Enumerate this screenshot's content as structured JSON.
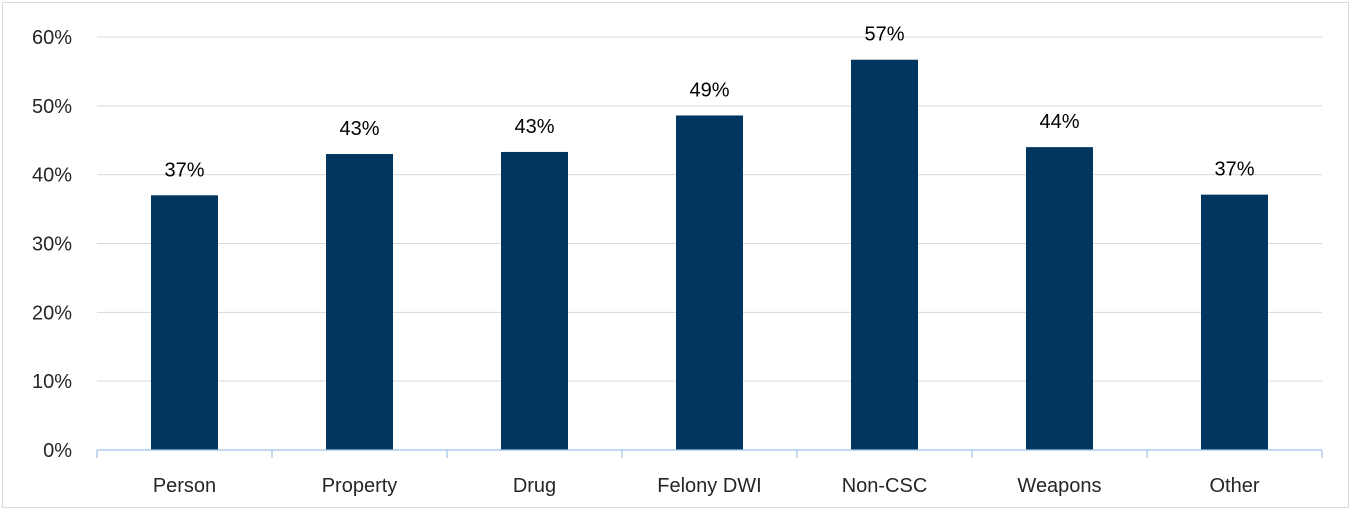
{
  "chart_data": {
    "type": "bar",
    "title": "",
    "xlabel": "",
    "ylabel": "",
    "categories": [
      "Person",
      "Property",
      "Drug",
      "Felony DWI",
      "Non-CSC",
      "Weapons",
      "Other"
    ],
    "values": [
      0.37,
      0.43,
      0.433,
      0.486,
      0.567,
      0.44,
      0.371
    ],
    "data_labels": [
      "37%",
      "43%",
      "43%",
      "49%",
      "57%",
      "44%",
      "37%"
    ],
    "ylim": [
      0,
      0.6
    ],
    "yticks": [
      0,
      0.1,
      0.2,
      0.3,
      0.4,
      0.5,
      0.6
    ],
    "ytick_labels": [
      "0%",
      "10%",
      "20%",
      "30%",
      "40%",
      "50%",
      "60%"
    ],
    "grid": true,
    "legend": "none",
    "bar_color": "#003660"
  }
}
